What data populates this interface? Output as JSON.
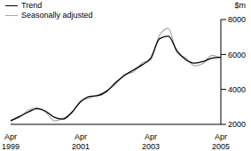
{
  "chart_data": {
    "type": "line",
    "ylabel": "$m",
    "categories": [
      "Apr 1999",
      null,
      null,
      null,
      null,
      null,
      null,
      null,
      "Apr 2001",
      null,
      null,
      null,
      null,
      null,
      null,
      null,
      "Apr 2003",
      null,
      null,
      null,
      null,
      null,
      null,
      null,
      "Apr 2005"
    ],
    "series": [
      {
        "name": "Trend",
        "color": "#000000",
        "values": [
          2200,
          2450,
          2700,
          2900,
          2750,
          2400,
          2300,
          2700,
          3300,
          3600,
          3650,
          3900,
          4400,
          4800,
          5100,
          5400,
          5800,
          6900,
          7050,
          6200,
          5700,
          5500,
          5600,
          5800,
          5850
        ]
      },
      {
        "name": "Seasonally adjusted",
        "color": "#a6a6a6",
        "values": [
          2250,
          2400,
          2800,
          2950,
          2700,
          2200,
          2350,
          2650,
          3350,
          3500,
          3700,
          3950,
          4300,
          4850,
          5000,
          5500,
          5700,
          7100,
          7500,
          6100,
          5800,
          5350,
          5500,
          5950,
          5800
        ]
      }
    ],
    "ylim": [
      2000,
      8000
    ],
    "yticks": [
      2000,
      4000,
      6000,
      8000
    ],
    "legend": "top-left"
  }
}
